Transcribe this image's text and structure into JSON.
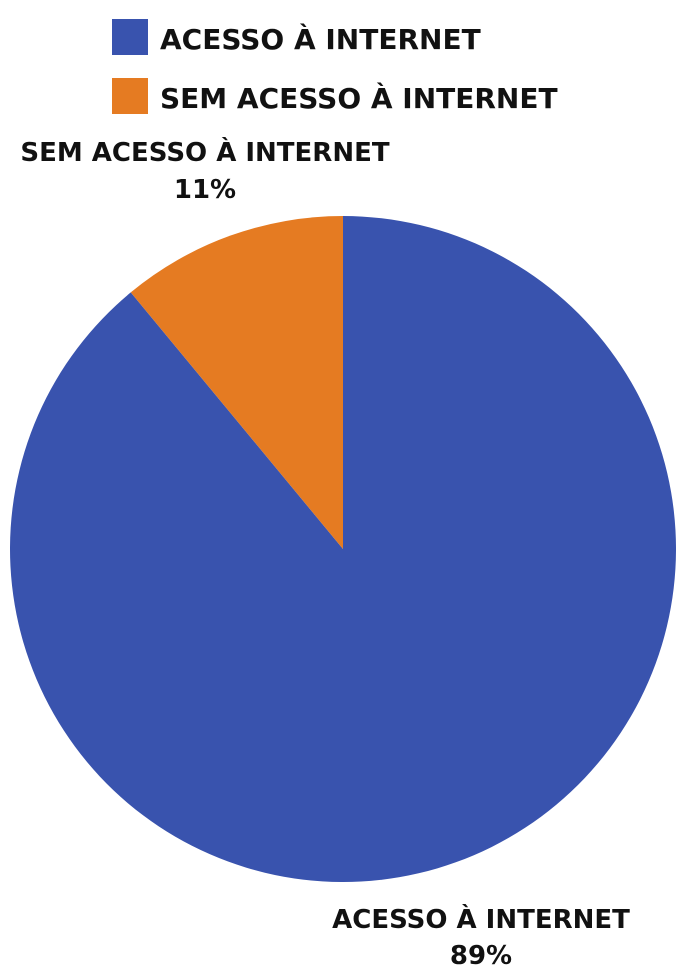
{
  "chart_data": {
    "type": "pie",
    "title": "",
    "start": "top",
    "direction": "clockwise",
    "slices": [
      {
        "label": "ACESSO À INTERNET",
        "value": 89,
        "value_label": "89%",
        "color": "#3953ae"
      },
      {
        "label": "SEM ACESSO À INTERNET",
        "value": 11,
        "value_label": "11%",
        "color": "#e57b22"
      }
    ],
    "legend": {
      "placement": "top",
      "items": [
        "ACESSO À INTERNET",
        "SEM ACESSO À INTERNET"
      ]
    }
  }
}
